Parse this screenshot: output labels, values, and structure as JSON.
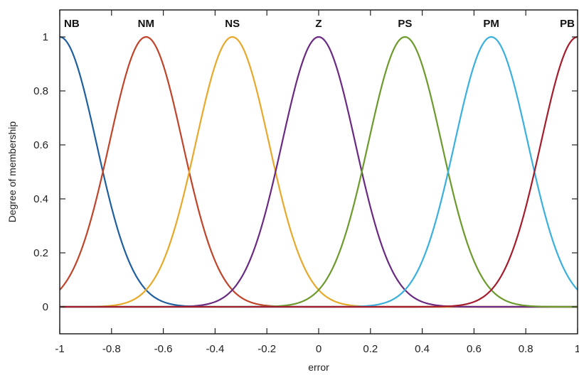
{
  "chart_data": {
    "type": "line",
    "xlabel": "error",
    "ylabel": "Degree of membership",
    "xlim": [
      -1,
      1
    ],
    "ylim": [
      -0.1,
      1.1
    ],
    "xticks": [
      -1,
      -0.8,
      -0.6,
      -0.4,
      -0.2,
      0,
      0.2,
      0.4,
      0.6,
      0.8,
      1
    ],
    "xtick_labels": [
      "-1",
      "-0.8",
      "-0.6",
      "-0.4",
      "-0.2",
      "0",
      "0.2",
      "0.4",
      "0.6",
      "0.8",
      "1"
    ],
    "yticks": [
      0,
      0.2,
      0.4,
      0.6,
      0.8,
      1
    ],
    "ytick_labels": [
      "0",
      "0.2",
      "0.4",
      "0.6",
      "0.8",
      "1"
    ],
    "grid": false,
    "function": "gaussian",
    "sigma": 0.1416,
    "series": [
      {
        "name": "NB",
        "center": -1.0,
        "color": "#1f5fa0"
      },
      {
        "name": "NM",
        "center": -0.6667,
        "color": "#c0442a"
      },
      {
        "name": "NS",
        "center": -0.3333,
        "color": "#e8a92a"
      },
      {
        "name": "Z",
        "center": 0.0,
        "color": "#6a2a82"
      },
      {
        "name": "PS",
        "center": 0.3333,
        "color": "#6c9a2c"
      },
      {
        "name": "PM",
        "center": 0.6667,
        "color": "#3ab0de"
      },
      {
        "name": "PB",
        "center": 1.0,
        "color": "#a51d2d"
      }
    ]
  }
}
